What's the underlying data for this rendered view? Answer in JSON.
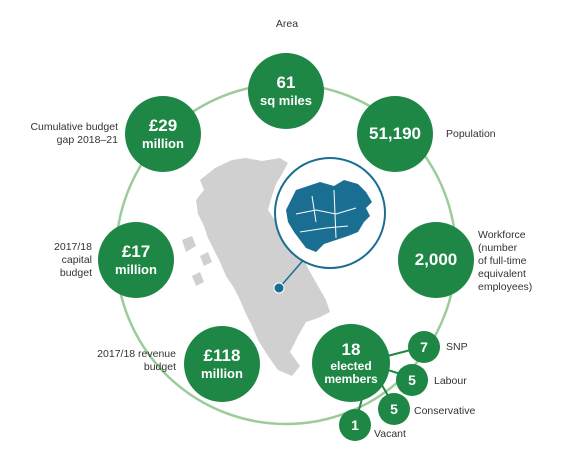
{
  "stats": {
    "area": {
      "value": "61",
      "unit": "sq miles",
      "label": "Area"
    },
    "population": {
      "value": "51,190",
      "label": "Population"
    },
    "workforce": {
      "value": "2,000",
      "label_lines": [
        "Workforce",
        "(number",
        "of full-time",
        "equivalent",
        "employees)"
      ]
    },
    "revenue": {
      "value": "£118",
      "unit": "million",
      "label_lines": [
        "2017/18 revenue",
        "budget"
      ]
    },
    "capital": {
      "value": "£17",
      "unit": "million",
      "label_lines": [
        "2017/18",
        "capital",
        "budget"
      ]
    },
    "gap": {
      "value": "£29",
      "unit": "million",
      "label_lines": [
        "Cumulative budget",
        "gap 2018–21"
      ]
    },
    "members": {
      "value": "18",
      "unit_lines": [
        "elected",
        "members"
      ]
    }
  },
  "parties": [
    {
      "count": "7",
      "name": "SNP"
    },
    {
      "count": "5",
      "name": "Labour"
    },
    {
      "count": "5",
      "name": "Conservative"
    },
    {
      "count": "1",
      "name": "Vacant"
    }
  ],
  "colors": {
    "green": "#1e8745",
    "ring": "#9ccc9c",
    "map": "#d0d0d0",
    "council": "#1a6e92"
  }
}
